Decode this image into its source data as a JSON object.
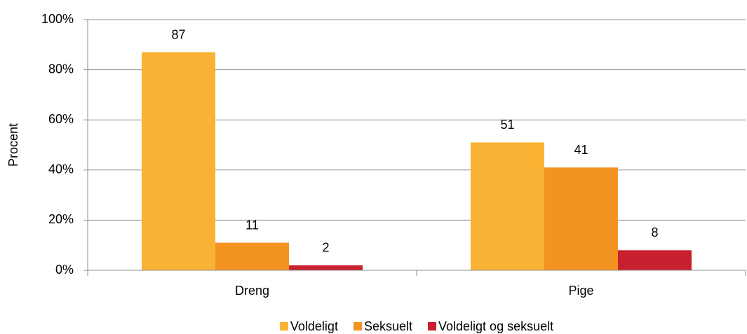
{
  "chart_data": {
    "type": "bar",
    "y_label": "Procent",
    "categories": [
      "Dreng",
      "Pige"
    ],
    "series": [
      {
        "name": "Voldeligt",
        "color": "#f9b233",
        "values": [
          87,
          51
        ]
      },
      {
        "name": "Seksuelt",
        "color": "#f39322",
        "values": [
          11,
          41
        ]
      },
      {
        "name": "Voldeligt og seksuelt",
        "color": "#c8202f",
        "values": [
          2,
          8
        ]
      }
    ],
    "ylim": [
      0,
      100
    ],
    "yticks": [
      {
        "value": 0,
        "label": "0%"
      },
      {
        "value": 20,
        "label": "20%"
      },
      {
        "value": 40,
        "label": "40%"
      },
      {
        "value": 60,
        "label": "60%"
      },
      {
        "value": 80,
        "label": "80%"
      },
      {
        "value": 100,
        "label": "100%"
      }
    ],
    "grid": true,
    "legend": "bottom"
  }
}
